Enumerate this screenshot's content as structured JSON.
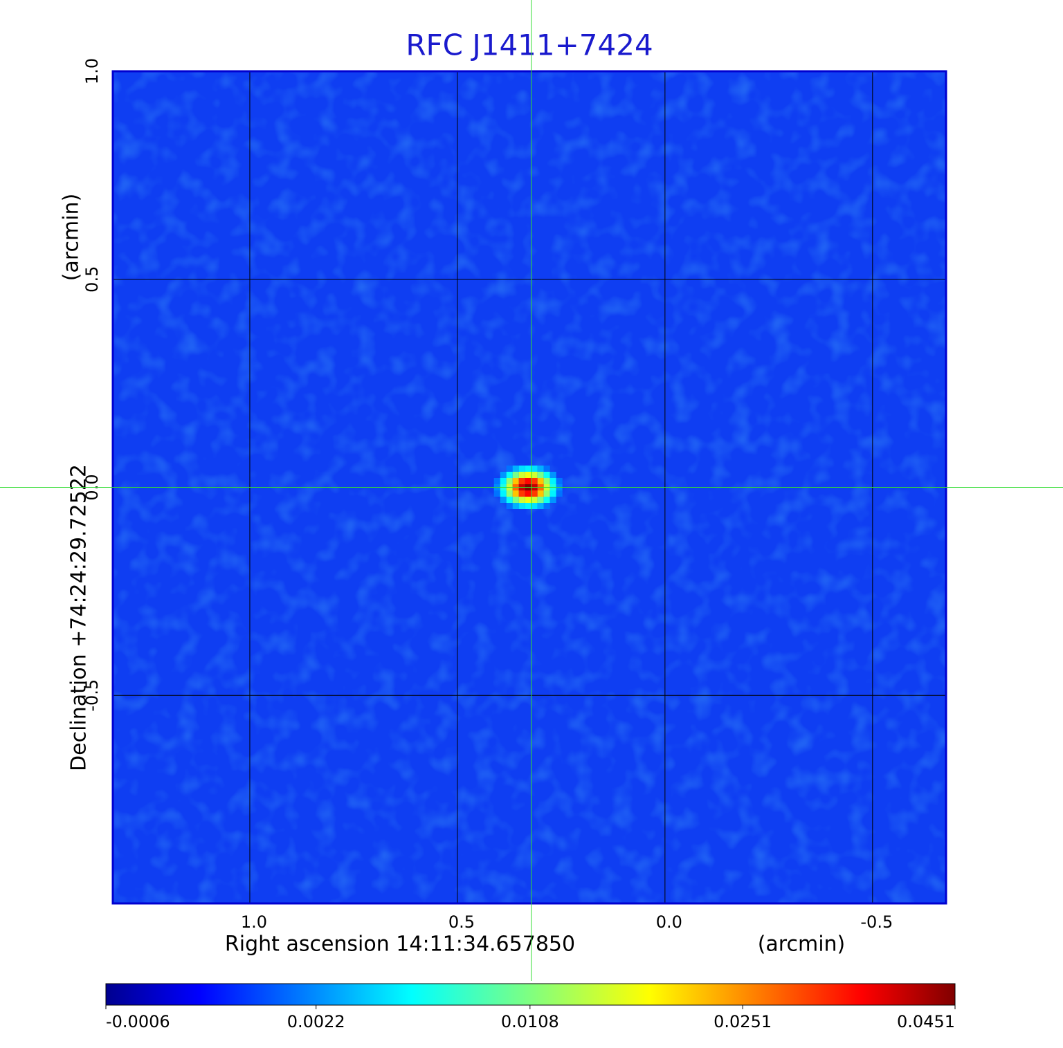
{
  "chart_data": {
    "type": "image",
    "title": "RFC J1411+7424",
    "x_label": "Right ascension  14:11:34.657850",
    "x_unit": "(arcmin)",
    "y_label": "Declination  +74:24:29.72522",
    "y_unit": "(arcmin)",
    "xlim": [
      1.33,
      -0.677
    ],
    "ylim": [
      -1.0,
      1.0
    ],
    "xticks": [
      {
        "value": 1,
        "label": "1.0"
      },
      0.5,
      {
        "value": 0,
        "label": "0.0"
      },
      -0.5
    ],
    "yticks": [
      {
        "value": 1,
        "label": "1.0"
      },
      0.5,
      {
        "value": 0,
        "label": "0.0"
      },
      -0.5
    ],
    "grid": true,
    "crosshair": {
      "x": 0.322,
      "y": 0
    },
    "source": {
      "x": 0.322,
      "y": 0,
      "peak": 0.0451
    },
    "colorbar": {
      "colormap": "jet",
      "scale": "sqrt",
      "clim": [
        -0.0006,
        0.0451
      ],
      "ticks": [
        -0.0006,
        0.0022,
        0.0108,
        0.0251,
        0.0451
      ]
    }
  }
}
